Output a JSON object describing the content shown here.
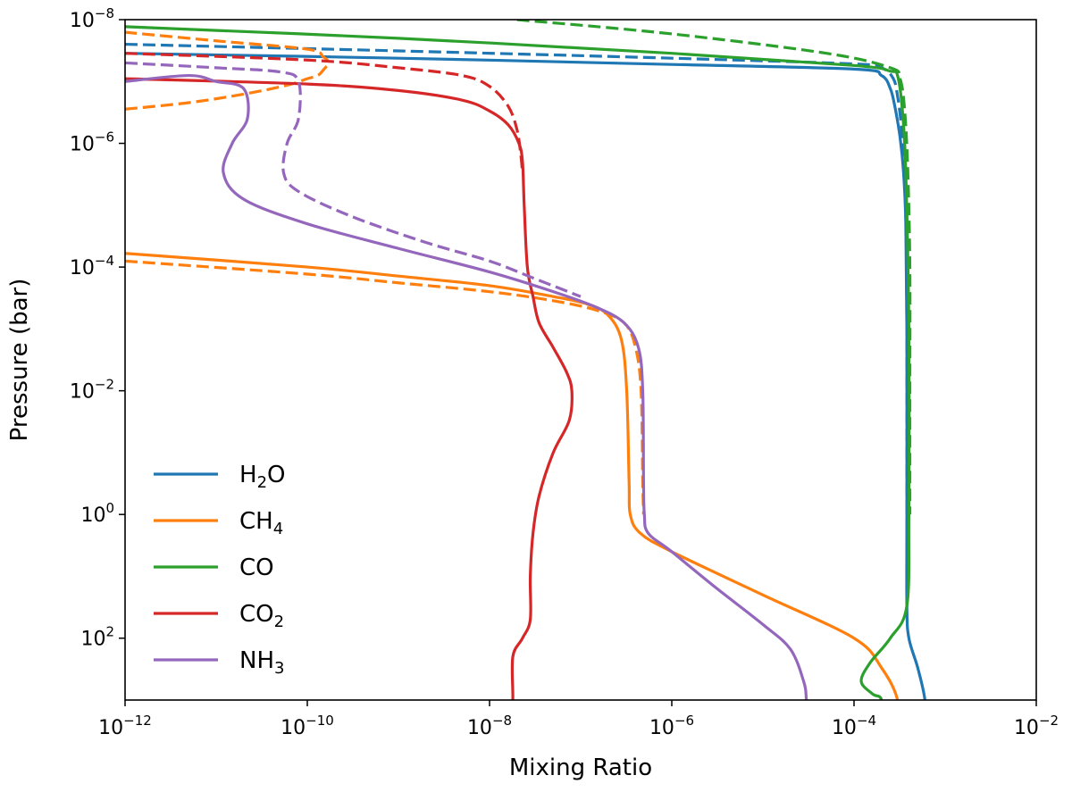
{
  "chart_data": {
    "type": "line",
    "title": "",
    "xlabel": "Mixing Ratio",
    "ylabel": "Pressure (bar)",
    "x_scale": "log",
    "y_scale": "log",
    "xlim": [
      1e-12,
      0.01
    ],
    "ylim": [
      1000,
      1e-08
    ],
    "y_inverted": true,
    "grid": false,
    "legend_position": "bottom-left",
    "x_ticks": [
      {
        "base": "10",
        "exp": "−12"
      },
      {
        "base": "10",
        "exp": "−10"
      },
      {
        "base": "10",
        "exp": "−8"
      },
      {
        "base": "10",
        "exp": "−6"
      },
      {
        "base": "10",
        "exp": "−4"
      },
      {
        "base": "10",
        "exp": "−2"
      }
    ],
    "y_ticks": [
      {
        "base": "10",
        "exp": "−8"
      },
      {
        "base": "10",
        "exp": "−6"
      },
      {
        "base": "10",
        "exp": "−4"
      },
      {
        "base": "10",
        "exp": "−2"
      },
      {
        "base": "10",
        "exp": "0"
      },
      {
        "base": "10",
        "exp": "2"
      }
    ],
    "series": [
      {
        "name": "H2O",
        "label_main": "H",
        "label_sub": "2",
        "label_tail": "O",
        "color": "#1f77b4",
        "solid": [
          [
            1e-12,
            3.5e-08
          ],
          [
            1e-09,
            4.2e-08
          ],
          [
            1e-06,
            5.3e-08
          ],
          [
            0.0001,
            6.3e-08
          ],
          [
            0.0002,
            8e-08
          ],
          [
            0.00025,
            1.3e-07
          ],
          [
            0.00028,
            2.5e-07
          ],
          [
            0.00032,
            8e-07
          ],
          [
            0.00035,
            3e-06
          ],
          [
            0.00037,
            2e-05
          ],
          [
            0.00038,
            0.001
          ],
          [
            0.00038,
            1
          ],
          [
            0.00038,
            30
          ],
          [
            0.0004,
            100
          ],
          [
            0.0005,
            300
          ],
          [
            0.0006,
            1000
          ],
          [
            0.0006,
            3000
          ]
        ],
        "dashed": [
          [
            1e-12,
            2.5e-08
          ],
          [
            1e-09,
            3.2e-08
          ],
          [
            1e-06,
            4.2e-08
          ],
          [
            0.0001,
            5.2e-08
          ],
          [
            0.0002,
            6e-08
          ],
          [
            0.00027,
            9e-08
          ],
          [
            0.0003,
            1.7e-07
          ],
          [
            0.00033,
            5e-07
          ],
          [
            0.00035,
            1.5e-06
          ],
          [
            0.00037,
            1e-05
          ],
          [
            0.00038,
            0.001
          ],
          [
            0.00038,
            1
          ],
          [
            0.00038,
            30
          ]
        ]
      },
      {
        "name": "CH4",
        "label_main": "CH",
        "label_sub": "4",
        "label_tail": "",
        "color": "#ff7f0e",
        "solid": [
          [
            1e-12,
            6e-05
          ],
          [
            1e-10,
            0.0001
          ],
          [
            1e-09,
            0.00014
          ],
          [
            1e-08,
            0.0002
          ],
          [
            5e-08,
            0.0003
          ],
          [
            1.2e-07,
            0.0004
          ],
          [
            2e-07,
            0.0006
          ],
          [
            2.8e-07,
            0.0015
          ],
          [
            3.2e-07,
            0.01
          ],
          [
            3.4e-07,
            0.3
          ],
          [
            3.5e-07,
            1
          ],
          [
            4.5e-07,
            2
          ],
          [
            1e-06,
            4
          ],
          [
            1e-05,
            20
          ],
          [
            0.0001,
            100
          ],
          [
            0.0002,
            300
          ],
          [
            0.0003,
            1000
          ],
          [
            0.00028,
            3000
          ]
        ],
        "dashed": [
          [
            1e-12,
            8e-05
          ],
          [
            1e-10,
            0.00013
          ],
          [
            1e-09,
            0.00018
          ],
          [
            1e-08,
            0.00025
          ],
          [
            5e-08,
            0.00035
          ],
          [
            1.5e-07,
            0.0005
          ],
          [
            3e-07,
            0.0008
          ],
          [
            4e-07,
            0.002
          ],
          [
            4.6e-07,
            0.01
          ],
          [
            4.8e-07,
            0.3
          ],
          [
            4.9e-07,
            1
          ]
        ],
        "dashed_upper": [
          [
            1e-12,
            2.8e-07
          ],
          [
            5e-12,
            2.2e-07
          ],
          [
            2e-11,
            1.6e-07
          ],
          [
            6e-11,
            1.15e-07
          ],
          [
            1e-10,
            9e-08
          ],
          [
            1.3e-10,
            8e-08
          ],
          [
            1.5e-10,
            6.5e-08
          ],
          [
            1.7e-10,
            5e-08
          ],
          [
            1.5e-10,
            4e-08
          ],
          [
            1e-10,
            3e-08
          ],
          [
            1e-11,
            2.2e-08
          ],
          [
            1e-12,
            1.6e-08
          ]
        ]
      },
      {
        "name": "CO",
        "label_main": "CO",
        "label_sub": "",
        "label_tail": "",
        "color": "#2ca02c",
        "solid": [
          [
            1e-12,
            1.3e-08
          ],
          [
            1e-09,
            2e-08
          ],
          [
            1e-06,
            3.5e-08
          ],
          [
            0.0001,
            5.5e-08
          ],
          [
            0.00025,
            6.8e-08
          ],
          [
            0.0003,
            8e-08
          ],
          [
            0.00034,
            3e-07
          ],
          [
            0.00037,
            3e-06
          ],
          [
            0.0004,
            0.001
          ],
          [
            0.0004,
            1
          ],
          [
            0.00038,
            30
          ],
          [
            0.00025,
            100
          ],
          [
            0.00015,
            250
          ],
          [
            0.00012,
            500
          ],
          [
            0.00016,
            800
          ],
          [
            0.0002,
            1000
          ],
          [
            0.0002,
            3000
          ]
        ],
        "dashed": [
          [
            2e-08,
            1e-08
          ],
          [
            1e-06,
            1.7e-08
          ],
          [
            5e-05,
            3.5e-08
          ],
          [
            0.00025,
            6e-08
          ],
          [
            0.00032,
            9e-08
          ],
          [
            0.00036,
            3e-07
          ],
          [
            0.00039,
            3e-06
          ],
          [
            0.00041,
            0.0001
          ],
          [
            0.00041,
            0.01
          ],
          [
            0.00041,
            1
          ]
        ]
      },
      {
        "name": "CO2",
        "label_main": "CO",
        "label_sub": "2",
        "label_tail": "",
        "color": "#d62728",
        "solid": [
          [
            1e-12,
            9e-08
          ],
          [
            1e-10,
            1.1e-07
          ],
          [
            1e-09,
            1.4e-07
          ],
          [
            5e-09,
            2e-07
          ],
          [
            1e-08,
            3e-07
          ],
          [
            1.6e-08,
            5e-07
          ],
          [
            2.1e-08,
            1e-06
          ],
          [
            2.3e-08,
            2e-06
          ],
          [
            2.4e-08,
            1e-05
          ],
          [
            2.6e-08,
            0.0001
          ],
          [
            3e-08,
            0.0003
          ],
          [
            3.5e-08,
            0.0008
          ],
          [
            5e-08,
            0.002
          ],
          [
            7e-08,
            0.005
          ],
          [
            8e-08,
            0.01
          ],
          [
            7.5e-08,
            0.03
          ],
          [
            5e-08,
            0.1
          ],
          [
            3.5e-08,
            0.5
          ],
          [
            3e-08,
            2
          ],
          [
            2.8e-08,
            10
          ],
          [
            2.8e-08,
            50
          ],
          [
            2.3e-08,
            100
          ],
          [
            1.8e-08,
            200
          ],
          [
            1.8e-08,
            1000
          ],
          [
            1.7e-08,
            3000
          ]
        ],
        "dashed": [
          [
            1e-12,
            3.5e-08
          ],
          [
            1e-10,
            4.5e-08
          ],
          [
            1e-09,
            6e-08
          ],
          [
            5e-09,
            8e-08
          ],
          [
            1e-08,
            1.2e-07
          ],
          [
            1.6e-08,
            2.5e-07
          ],
          [
            2e-08,
            6e-07
          ],
          [
            2.2e-08,
            1.5e-06
          ],
          [
            2.3e-08,
            3e-06
          ]
        ]
      },
      {
        "name": "NH3",
        "label_main": "NH",
        "label_sub": "3",
        "label_tail": "",
        "color": "#9467bd",
        "solid": [
          [
            1e-12,
            1e-07
          ],
          [
            5e-12,
            8e-08
          ],
          [
            1e-11,
            1e-07
          ],
          [
            2e-11,
            1.3e-07
          ],
          [
            2.2e-11,
            4e-07
          ],
          [
            1.5e-11,
            1e-06
          ],
          [
            1.2e-11,
            3e-06
          ],
          [
            2e-11,
            8e-06
          ],
          [
            1e-10,
            2e-05
          ],
          [
            1e-09,
            5e-05
          ],
          [
            1e-08,
            0.00012
          ],
          [
            5e-08,
            0.00025
          ],
          [
            1.5e-07,
            0.00045
          ],
          [
            3e-07,
            0.0008
          ],
          [
            4.3e-07,
            0.002
          ],
          [
            4.8e-07,
            0.01
          ],
          [
            4.9e-07,
            0.3
          ],
          [
            5e-07,
            1
          ],
          [
            5.5e-07,
            2
          ],
          [
            1e-06,
            4
          ],
          [
            3e-06,
            15
          ],
          [
            1e-05,
            60
          ],
          [
            2e-05,
            150
          ],
          [
            2.8e-05,
            500
          ],
          [
            3e-05,
            1000
          ],
          [
            3.1e-05,
            3000
          ]
        ],
        "dashed": [
          [
            1e-12,
            5e-08
          ],
          [
            1e-11,
            6e-08
          ],
          [
            5e-11,
            7e-08
          ],
          [
            8e-11,
            1e-07
          ],
          [
            8e-11,
            4e-07
          ],
          [
            6e-11,
            1e-06
          ],
          [
            5.5e-11,
            3e-06
          ],
          [
            8e-11,
            6e-06
          ],
          [
            3e-10,
            1.5e-05
          ],
          [
            2e-09,
            4e-05
          ],
          [
            1e-08,
            8e-05
          ],
          [
            3e-08,
            0.00015
          ],
          [
            1e-07,
            0.0003
          ]
        ]
      }
    ]
  }
}
